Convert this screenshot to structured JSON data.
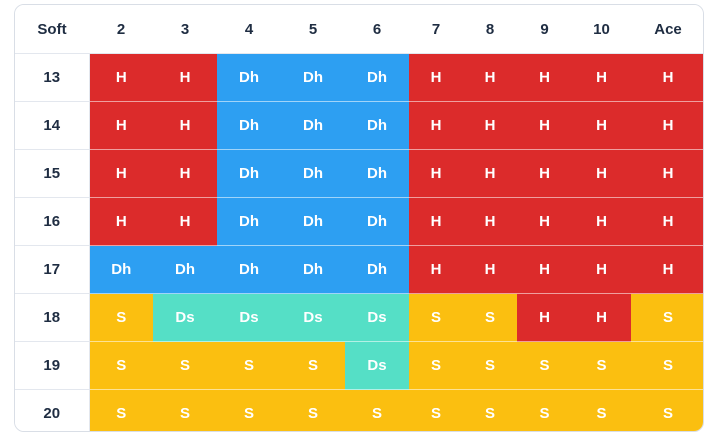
{
  "header": {
    "corner": "Soft",
    "columns": [
      "2",
      "3",
      "4",
      "5",
      "6",
      "7",
      "8",
      "9",
      "10",
      "Ace"
    ]
  },
  "rows": [
    {
      "label": "13",
      "cells": [
        "H",
        "H",
        "Dh",
        "Dh",
        "Dh",
        "H",
        "H",
        "H",
        "H",
        "H"
      ]
    },
    {
      "label": "14",
      "cells": [
        "H",
        "H",
        "Dh",
        "Dh",
        "Dh",
        "H",
        "H",
        "H",
        "H",
        "H"
      ]
    },
    {
      "label": "15",
      "cells": [
        "H",
        "H",
        "Dh",
        "Dh",
        "Dh",
        "H",
        "H",
        "H",
        "H",
        "H"
      ]
    },
    {
      "label": "16",
      "cells": [
        "H",
        "H",
        "Dh",
        "Dh",
        "Dh",
        "H",
        "H",
        "H",
        "H",
        "H"
      ]
    },
    {
      "label": "17",
      "cells": [
        "Dh",
        "Dh",
        "Dh",
        "Dh",
        "Dh",
        "H",
        "H",
        "H",
        "H",
        "H"
      ]
    },
    {
      "label": "18",
      "cells": [
        "S",
        "Ds",
        "Ds",
        "Ds",
        "Ds",
        "S",
        "S",
        "H",
        "H",
        "S"
      ]
    },
    {
      "label": "19",
      "cells": [
        "S",
        "S",
        "S",
        "S",
        "Ds",
        "S",
        "S",
        "S",
        "S",
        "S"
      ]
    },
    {
      "label": "20",
      "cells": [
        "S",
        "S",
        "S",
        "S",
        "S",
        "S",
        "S",
        "S",
        "S",
        "S"
      ]
    }
  ],
  "colors": {
    "H": "#dc2b2b",
    "Dh": "#2d9ff2",
    "S": "#fbbf10",
    "Ds": "#55dfc6"
  }
}
